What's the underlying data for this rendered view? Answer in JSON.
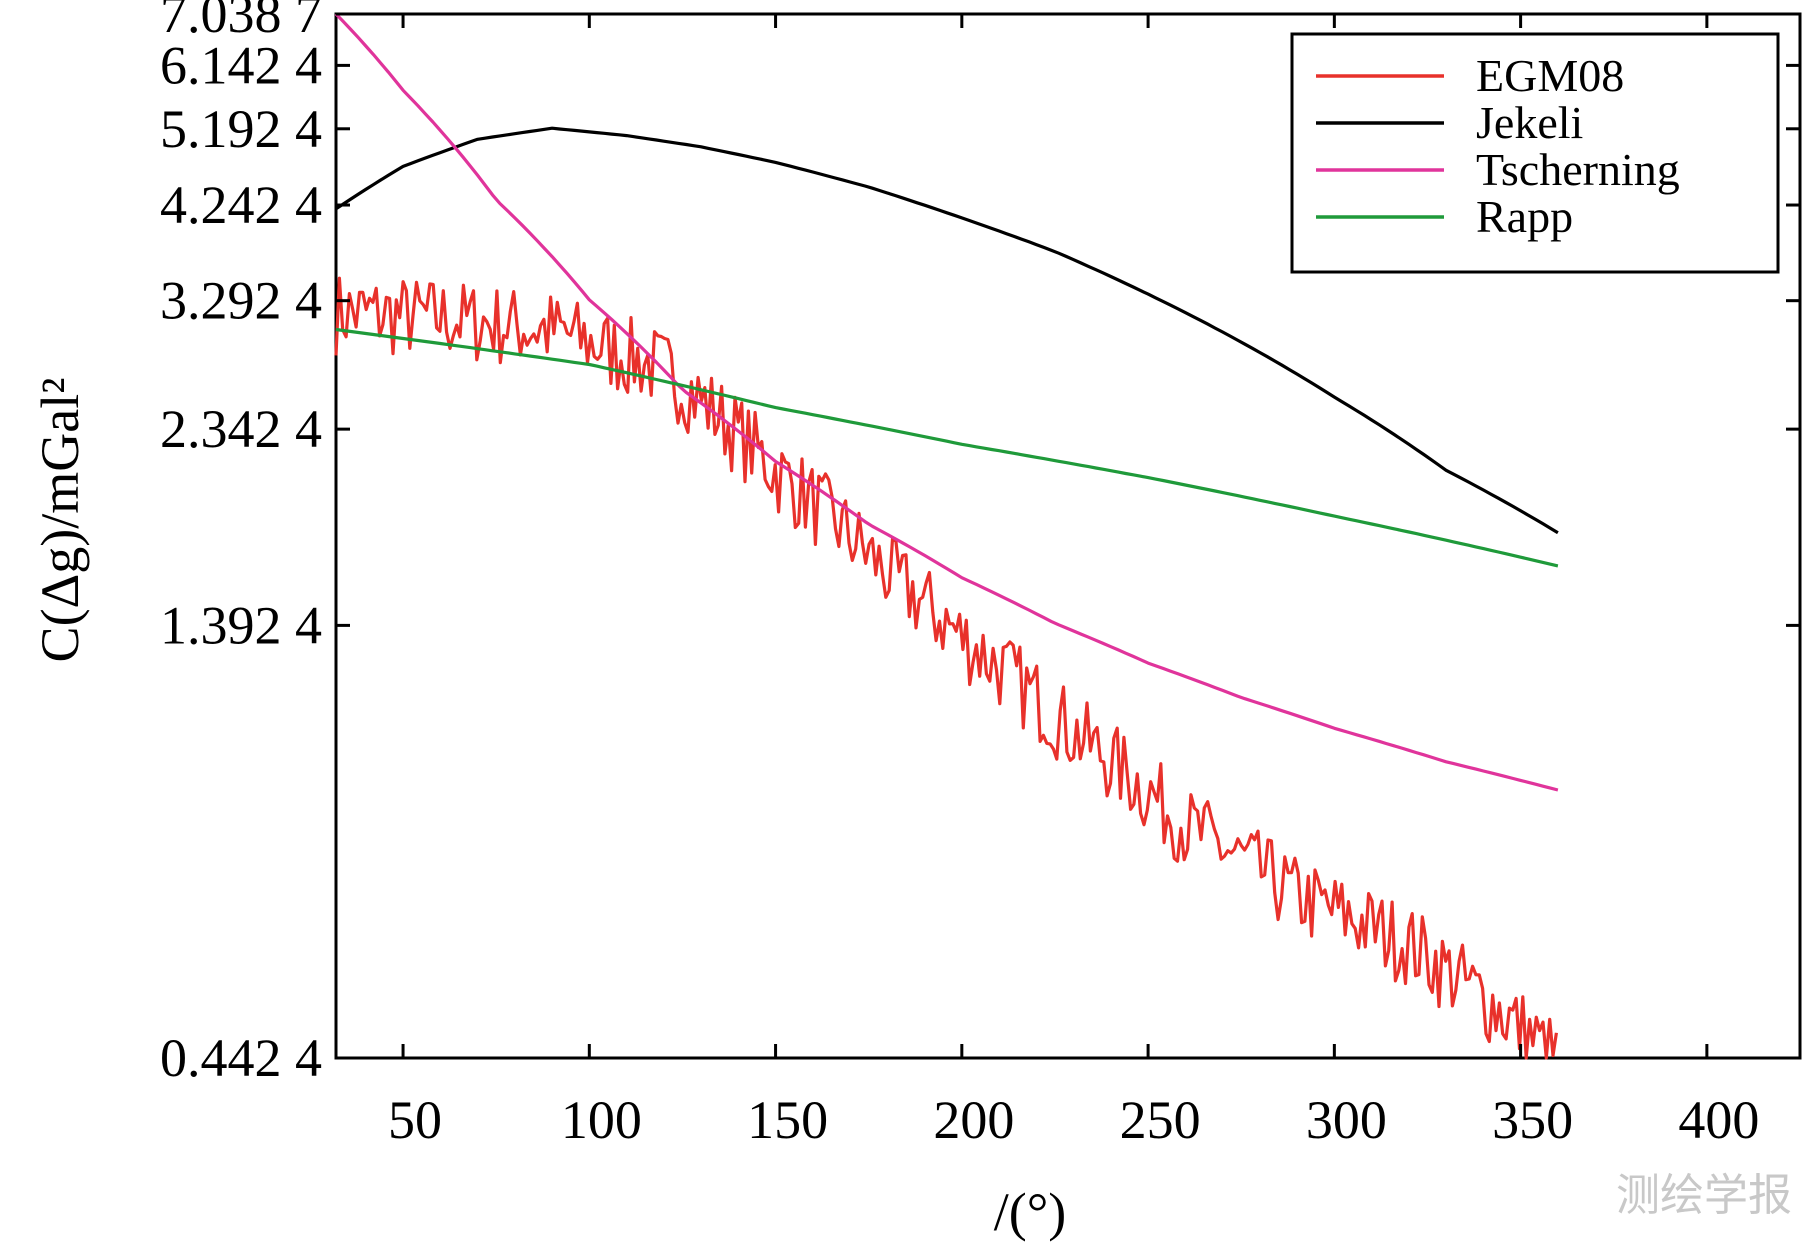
{
  "chart_data": {
    "type": "line",
    "xlabel": "/(°)",
    "ylabel": "C(Δg)/mGal²",
    "xlim": [
      32,
      425
    ],
    "ylim": [
      0.4424,
      7.0387
    ],
    "y_scale": "log",
    "x_ticks": [
      50,
      100,
      150,
      200,
      250,
      300,
      350,
      400
    ],
    "y_ticks": [
      0.4424,
      1.3924,
      2.3424,
      3.2924,
      4.2424,
      5.1924,
      6.1424,
      7.0387
    ],
    "x_tick_labels": [
      "50",
      "100",
      "150",
      "200",
      "250",
      "300",
      "350",
      "400"
    ],
    "y_tick_labels": [
      "0.442 4",
      "1.392 4",
      "2.342 4",
      "3.292 4",
      "4.242 4",
      "5.192 4",
      "6.142 4",
      "7.038 7"
    ],
    "grid": false,
    "legend_position": "top-right",
    "series": [
      {
        "name": "EGM08",
        "color": "#e8312b",
        "noisy": true,
        "x": [
          32,
          60,
          90,
          120,
          150,
          180,
          200,
          230,
          260,
          290,
          320,
          345,
          360
        ],
        "y": [
          3.2,
          3.15,
          3.05,
          2.75,
          2.1,
          1.6,
          1.35,
          1.05,
          0.82,
          0.68,
          0.6,
          0.5,
          0.44
        ]
      },
      {
        "name": "Jekeli",
        "color": "#000000",
        "noisy": false,
        "x": [
          32,
          50,
          70,
          90,
          110,
          130,
          150,
          175,
          200,
          225,
          250,
          275,
          300,
          330,
          360
        ],
        "y": [
          4.2,
          4.7,
          5.05,
          5.2,
          5.1,
          4.95,
          4.75,
          4.45,
          4.1,
          3.75,
          3.35,
          2.95,
          2.55,
          2.1,
          1.78
        ]
      },
      {
        "name": "Tscherning",
        "color": "#e0349b",
        "noisy": false,
        "x": [
          32,
          50,
          75,
          100,
          125,
          150,
          175,
          200,
          225,
          250,
          275,
          300,
          330,
          360
        ],
        "y": [
          7.04,
          5.75,
          4.3,
          3.3,
          2.6,
          2.15,
          1.82,
          1.58,
          1.4,
          1.26,
          1.15,
          1.06,
          0.97,
          0.9
        ]
      },
      {
        "name": "Rapp",
        "color": "#1f9a3a",
        "noisy": false,
        "x": [
          32,
          100,
          150,
          200,
          250,
          300,
          360
        ],
        "y": [
          3.05,
          2.78,
          2.48,
          2.25,
          2.06,
          1.86,
          1.63
        ]
      }
    ]
  },
  "watermark": "测绘学报"
}
